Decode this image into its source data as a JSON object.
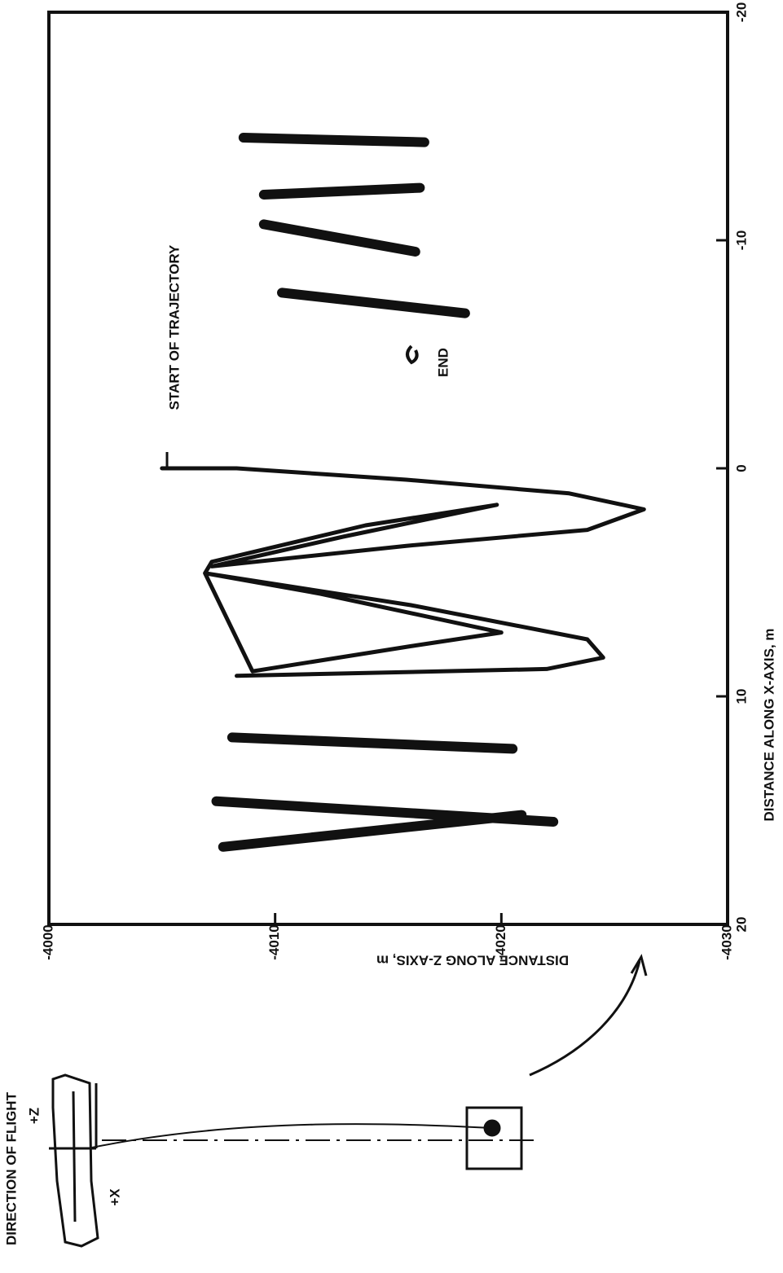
{
  "chart_data": {
    "type": "line",
    "x_label": "DISTANCE ALONG X-AXIS, m",
    "y_label": "DISTANCE ALONG Z-AXIS, m",
    "xlim": [
      -20,
      20
    ],
    "xticks": [
      -20,
      -10,
      0,
      10,
      20
    ],
    "ylim": [
      -4030,
      -4000
    ],
    "yticks": [
      -4030,
      -4020,
      -4010,
      -4000
    ],
    "annotations": [
      "START OF TRAJECTORY",
      "END"
    ],
    "diagram": {
      "title": "DIRECTION OF FLIGHT",
      "z_label": "+Z",
      "x_label": "+X"
    },
    "series": [
      {
        "color": "#111111",
        "width": 5,
        "x": [
          0,
          0,
          0.5,
          1.1,
          1.8,
          2.7,
          3.4,
          4.3,
          3.0,
          1.6,
          2.5,
          4.1,
          4.6,
          5.5,
          7.2,
          7.8,
          8.9,
          4.6,
          6.0,
          7.5,
          8.3,
          8.8,
          9.1
        ],
        "values": [
          -4005,
          -4008.3,
          -4015.8,
          -4023,
          -4026.3,
          -4023.8,
          -4015.8,
          -4007.2,
          -4013,
          -4019.8,
          -4014,
          -4007.2,
          -4006.9,
          -4012,
          -4020,
          -4016,
          -4009,
          -4006.9,
          -4016,
          -4023.8,
          -4024.5,
          -4022,
          -4008.3
        ]
      },
      {
        "color": "#111111",
        "width": 12,
        "x": [
          -10.7,
          -9.5,
          null,
          -12.0,
          -12.3,
          null,
          -7.7,
          -6.8,
          null,
          -14.5,
          -14.3,
          null,
          11.8,
          12.3,
          null,
          14.6,
          15.5,
          null,
          16.6,
          15.2
        ],
        "values": [
          -4009.5,
          -4016.2,
          null,
          -4009.5,
          -4016.4,
          null,
          -4010.3,
          -4018.4,
          null,
          -4008.6,
          -4016.6,
          null,
          -4008.1,
          -4020.5,
          null,
          -4007.4,
          -4022.3,
          null,
          -4007.7,
          -4020.9
        ]
      }
    ]
  }
}
